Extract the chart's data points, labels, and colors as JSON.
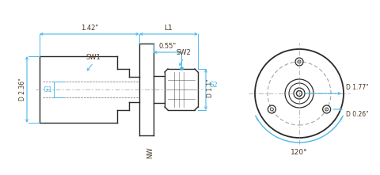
{
  "bg_color": "#ffffff",
  "dim_color": "#4db8e8",
  "line_color": "#2a2a2a",
  "gray_color": "#999999",
  "text_color": "#4a3520",
  "annotations": {
    "dim_142": "1.42\"",
    "dim_L1": "L1",
    "dim_055": "0.55\"",
    "dim_236": "D 2.36\"",
    "dim_11": "D 1.1\"",
    "dim_177": "D 1.77\"",
    "dim_026": "D 0.26\"",
    "dim_120": "120°",
    "label_SW1": "SW1",
    "label_SW2": "SW2",
    "label_G1": "G1",
    "label_G2": "G2",
    "label_NW": "NW"
  },
  "figsize": [
    4.8,
    2.21
  ],
  "dpi": 100
}
